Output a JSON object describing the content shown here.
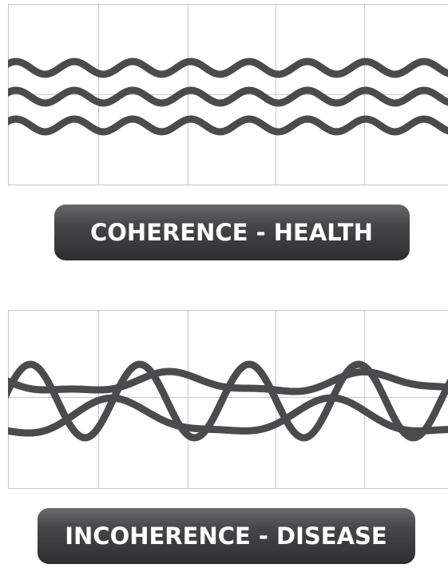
{
  "panels": [
    {
      "label": "COHERENCE - HEALTH"
    },
    {
      "label": "INCOHERENCE - DISEASE"
    }
  ]
}
